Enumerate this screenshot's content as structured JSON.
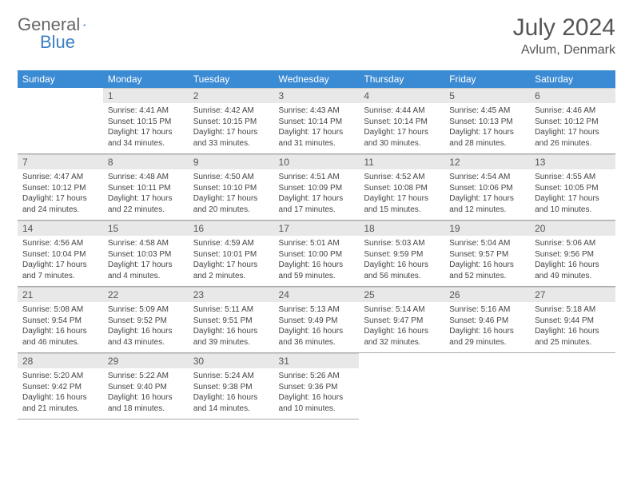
{
  "brand": {
    "part1": "General",
    "part2": "Blue"
  },
  "title": "July 2024",
  "location": "Avlum, Denmark",
  "colors": {
    "header_bg": "#3b8bd4",
    "daynum_bg": "#e8e8e8",
    "brand_blue": "#3b7fc4",
    "text": "#555"
  },
  "weekdays": [
    "Sunday",
    "Monday",
    "Tuesday",
    "Wednesday",
    "Thursday",
    "Friday",
    "Saturday"
  ],
  "weeks": [
    [
      null,
      {
        "n": "1",
        "sr": "4:41 AM",
        "ss": "10:15 PM",
        "dh": "17",
        "dm": "34"
      },
      {
        "n": "2",
        "sr": "4:42 AM",
        "ss": "10:15 PM",
        "dh": "17",
        "dm": "33"
      },
      {
        "n": "3",
        "sr": "4:43 AM",
        "ss": "10:14 PM",
        "dh": "17",
        "dm": "31"
      },
      {
        "n": "4",
        "sr": "4:44 AM",
        "ss": "10:14 PM",
        "dh": "17",
        "dm": "30"
      },
      {
        "n": "5",
        "sr": "4:45 AM",
        "ss": "10:13 PM",
        "dh": "17",
        "dm": "28"
      },
      {
        "n": "6",
        "sr": "4:46 AM",
        "ss": "10:12 PM",
        "dh": "17",
        "dm": "26"
      }
    ],
    [
      {
        "n": "7",
        "sr": "4:47 AM",
        "ss": "10:12 PM",
        "dh": "17",
        "dm": "24"
      },
      {
        "n": "8",
        "sr": "4:48 AM",
        "ss": "10:11 PM",
        "dh": "17",
        "dm": "22"
      },
      {
        "n": "9",
        "sr": "4:50 AM",
        "ss": "10:10 PM",
        "dh": "17",
        "dm": "20"
      },
      {
        "n": "10",
        "sr": "4:51 AM",
        "ss": "10:09 PM",
        "dh": "17",
        "dm": "17"
      },
      {
        "n": "11",
        "sr": "4:52 AM",
        "ss": "10:08 PM",
        "dh": "17",
        "dm": "15"
      },
      {
        "n": "12",
        "sr": "4:54 AM",
        "ss": "10:06 PM",
        "dh": "17",
        "dm": "12"
      },
      {
        "n": "13",
        "sr": "4:55 AM",
        "ss": "10:05 PM",
        "dh": "17",
        "dm": "10"
      }
    ],
    [
      {
        "n": "14",
        "sr": "4:56 AM",
        "ss": "10:04 PM",
        "dh": "17",
        "dm": "7"
      },
      {
        "n": "15",
        "sr": "4:58 AM",
        "ss": "10:03 PM",
        "dh": "17",
        "dm": "4"
      },
      {
        "n": "16",
        "sr": "4:59 AM",
        "ss": "10:01 PM",
        "dh": "17",
        "dm": "2"
      },
      {
        "n": "17",
        "sr": "5:01 AM",
        "ss": "10:00 PM",
        "dh": "16",
        "dm": "59"
      },
      {
        "n": "18",
        "sr": "5:03 AM",
        "ss": "9:59 PM",
        "dh": "16",
        "dm": "56"
      },
      {
        "n": "19",
        "sr": "5:04 AM",
        "ss": "9:57 PM",
        "dh": "16",
        "dm": "52"
      },
      {
        "n": "20",
        "sr": "5:06 AM",
        "ss": "9:56 PM",
        "dh": "16",
        "dm": "49"
      }
    ],
    [
      {
        "n": "21",
        "sr": "5:08 AM",
        "ss": "9:54 PM",
        "dh": "16",
        "dm": "46"
      },
      {
        "n": "22",
        "sr": "5:09 AM",
        "ss": "9:52 PM",
        "dh": "16",
        "dm": "43"
      },
      {
        "n": "23",
        "sr": "5:11 AM",
        "ss": "9:51 PM",
        "dh": "16",
        "dm": "39"
      },
      {
        "n": "24",
        "sr": "5:13 AM",
        "ss": "9:49 PM",
        "dh": "16",
        "dm": "36"
      },
      {
        "n": "25",
        "sr": "5:14 AM",
        "ss": "9:47 PM",
        "dh": "16",
        "dm": "32"
      },
      {
        "n": "26",
        "sr": "5:16 AM",
        "ss": "9:46 PM",
        "dh": "16",
        "dm": "29"
      },
      {
        "n": "27",
        "sr": "5:18 AM",
        "ss": "9:44 PM",
        "dh": "16",
        "dm": "25"
      }
    ],
    [
      {
        "n": "28",
        "sr": "5:20 AM",
        "ss": "9:42 PM",
        "dh": "16",
        "dm": "21"
      },
      {
        "n": "29",
        "sr": "5:22 AM",
        "ss": "9:40 PM",
        "dh": "16",
        "dm": "18"
      },
      {
        "n": "30",
        "sr": "5:24 AM",
        "ss": "9:38 PM",
        "dh": "16",
        "dm": "14"
      },
      {
        "n": "31",
        "sr": "5:26 AM",
        "ss": "9:36 PM",
        "dh": "16",
        "dm": "10"
      },
      null,
      null,
      null
    ]
  ]
}
